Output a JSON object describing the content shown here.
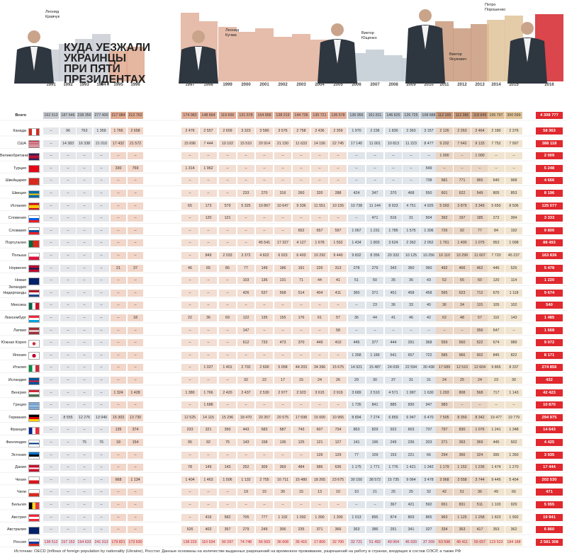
{
  "title": [
    "КУДА УЕЗЖАЛИ",
    "УКРАИНЦЫ",
    "ПРИ ПЯТИ",
    "ПРЕЗИДЕНТАХ"
  ],
  "presidents": [
    "Леонид Кравчук",
    "Леонид Кучма",
    "Виктор Ющенко",
    "Виктор Янукович",
    "Петро Порошенко"
  ],
  "years": [
    "1991",
    "1992",
    "1993",
    "1994",
    "1995",
    "1996",
    "1997",
    "1998",
    "1999",
    "2000",
    "2001",
    "2002",
    "2003",
    "2004",
    "2005",
    "2006",
    "2007",
    "2008",
    "2009",
    "2010",
    "2011",
    "2012",
    "2013",
    "2014",
    "2015",
    "2016"
  ],
  "total": {
    "label": "Всего",
    "cells": [
      "162 513",
      "187 646",
      "238 356",
      "277 400",
      "217 084",
      "212 762",
      "174 083",
      "148 664",
      "119 600",
      "131 578",
      "154 958",
      "138 219",
      "144 736",
      "130 721",
      "136 578",
      "136 956",
      "161 811",
      "146 625",
      "126 725",
      "108 688",
      "112 165",
      "112 386",
      "118 849",
      "195 797",
      "300 599",
      "4 308 777"
    ]
  },
  "rows": [
    {
      "label": "Канада",
      "cells": [
        "–",
        "96",
        "763",
        "1 359",
        "1 766",
        "2 658",
        "2 476",
        "2 557",
        "2 609",
        "3 323",
        "3 580",
        "3 576",
        "2 758",
        "2 436",
        "2 359",
        "1 970",
        "2 236",
        "1 830",
        "2 363",
        "3 157",
        "2 126",
        "2 263",
        "2 464",
        "2 180",
        "2 376",
        "58 363"
      ]
    },
    {
      "label": "США",
      "cells": [
        "–",
        "14 383",
        "16 338",
        "21 010",
        "17 432",
        "21 572",
        "15 696",
        "7 444",
        "10 102",
        "15 510",
        "20 914",
        "21 150",
        "11 633",
        "14 156",
        "22 745",
        "17 140",
        "11 001",
        "10 813",
        "11 223",
        "8 477",
        "9 292",
        "7 642",
        "9 133",
        "7 752",
        "7 997",
        "388 118"
      ]
    },
    {
      "label": "Великобритания",
      "cells": [
        "–",
        "–",
        "–",
        "–",
        "–",
        "–",
        "–",
        "–",
        "–",
        "–",
        "–",
        "–",
        "–",
        "–",
        "–",
        "–",
        "–",
        "–",
        "–",
        "–",
        "1 000",
        "–",
        "1 000",
        "–",
        "–",
        "2 009"
      ]
    },
    {
      "label": "Турция",
      "cells": [
        "–",
        "–",
        "–",
        "–",
        "330",
        "769",
        "1 314",
        "1 962",
        "–",
        "–",
        "–",
        "–",
        "–",
        "–",
        "–",
        "–",
        "–",
        "–",
        "–",
        "549",
        "–",
        "–",
        "–",
        "–",
        "–",
        "5 248"
      ]
    },
    {
      "label": "Швейцария",
      "cells": [
        "–",
        "–",
        "–",
        "–",
        "–",
        "–",
        "–",
        "–",
        "–",
        "–",
        "–",
        "–",
        "–",
        "–",
        "–",
        "–",
        "–",
        "–",
        "–",
        "738",
        "581",
        "771",
        "965",
        "640",
        "968",
        "4 666"
      ]
    },
    {
      "label": "Швеция",
      "cells": [
        "–",
        "–",
        "–",
        "–",
        "–",
        "–",
        "–",
        "–",
        "–",
        "233",
        "270",
        "316",
        "260",
        "320",
        "288",
        "424",
        "347",
        "370",
        "468",
        "550",
        "601",
        "622",
        "549",
        "805",
        "853",
        "8 196"
      ]
    },
    {
      "label": "Испания",
      "cells": [
        "–",
        "–",
        "–",
        "–",
        "–",
        "–",
        "65",
        "173",
        "579",
        "5 325",
        "10 867",
        "10 647",
        "9 336",
        "11 551",
        "10 155",
        "10 738",
        "11 144",
        "8 923",
        "4 751",
        "4 925",
        "5 093",
        "3 879",
        "3 349",
        "5 650",
        "8 506",
        "125 077"
      ]
    },
    {
      "label": "Словения",
      "cells": [
        "–",
        "–",
        "–",
        "–",
        "–",
        "–",
        "–",
        "120",
        "121",
        "–",
        "–",
        "–",
        "–",
        "–",
        "–",
        "–",
        "471",
        "516",
        "31",
        "504",
        "392",
        "197",
        "185",
        "272",
        "394",
        "3 333"
      ]
    },
    {
      "label": "Словакия",
      "cells": [
        "–",
        "–",
        "–",
        "–",
        "–",
        "–",
        "–",
        "–",
        "–",
        "–",
        "–",
        "–",
        "652",
        "657",
        "597",
        "1 067",
        "1 231",
        "1 785",
        "1 575",
        "1 306",
        "726",
        "92",
        "77",
        "84",
        "192",
        "9 800"
      ]
    },
    {
      "label": "Португалия",
      "cells": [
        "–",
        "–",
        "–",
        "–",
        "–",
        "–",
        "–",
        "–",
        "–",
        "–",
        "45 541",
        "17 327",
        "4 127",
        "1 678",
        "1 552",
        "1 434",
        "1 803",
        "3 624",
        "2 362",
        "2 052",
        "1 761",
        "1 400",
        "1 075",
        "953",
        "1 098",
        "88 493"
      ]
    },
    {
      "label": "Польша",
      "cells": [
        "–",
        "–",
        "–",
        "–",
        "–",
        "–",
        "–",
        "849",
        "2 033",
        "3 372",
        "4 822",
        "6 923",
        "6 403",
        "10 292",
        "9 440",
        "9 832",
        "8 356",
        "20 332",
        "10 125",
        "10 256",
        "10 110",
        "10 299",
        "11 607",
        "7 720",
        "45 237",
        "163 836"
      ]
    },
    {
      "label": "Норвегия",
      "cells": [
        "–",
        "–",
        "–",
        "–",
        "21",
        "37",
        "46",
        "65",
        "85",
        "77",
        "149",
        "186",
        "191",
        "226",
        "313",
        "278",
        "279",
        "343",
        "360",
        "360",
        "492",
        "466",
        "462",
        "446",
        "525",
        "5 478"
      ]
    },
    {
      "label": "Новая Зеландия",
      "cells": [
        "–",
        "–",
        "–",
        "–",
        "–",
        "–",
        "–",
        "–",
        "–",
        "103",
        "136",
        "131",
        "71",
        "44",
        "41",
        "51",
        "50",
        "35",
        "36",
        "43",
        "52",
        "65",
        "60",
        "120",
        "114",
        "1 220"
      ]
    },
    {
      "label": "Нидерланды",
      "cells": [
        "–",
        "–",
        "–",
        "–",
        "–",
        "–",
        "–",
        "–",
        "–",
        "426",
        "537",
        "568",
        "514",
        "404",
        "411",
        "360",
        "371",
        "451",
        "458",
        "458",
        "565",
        "623",
        "712",
        "670",
        "1 118",
        "9 674"
      ]
    },
    {
      "label": "Мексика",
      "cells": [
        "–",
        "–",
        "–",
        "–",
        "–",
        "–",
        "–",
        "–",
        "–",
        "–",
        "–",
        "–",
        "–",
        "–",
        "–",
        "–",
        "23",
        "36",
        "33",
        "40",
        "36",
        "34",
        "115",
        "105",
        "102",
        "540"
      ]
    },
    {
      "label": "Люксембург",
      "cells": [
        "–",
        "–",
        "–",
        "–",
        "–",
        "18",
        "22",
        "36",
        "69",
        "122",
        "135",
        "155",
        "176",
        "61",
        "57",
        "36",
        "44",
        "41",
        "46",
        "42",
        "62",
        "48",
        "57",
        "110",
        "143",
        "1 485"
      ]
    },
    {
      "label": "Латвия",
      "cells": [
        "–",
        "–",
        "–",
        "–",
        "–",
        "–",
        "–",
        "–",
        "–",
        "147",
        "–",
        "–",
        "–",
        "–",
        "58",
        "–",
        "–",
        "–",
        "–",
        "–",
        "–",
        "–",
        "356",
        "547",
        "–",
        "1 668"
      ]
    },
    {
      "label": "Южная Корея",
      "cells": [
        "–",
        "–",
        "–",
        "–",
        "–",
        "–",
        "–",
        "–",
        "–",
        "612",
        "733",
        "473",
        "370",
        "449",
        "410",
        "445",
        "377",
        "444",
        "291",
        "368",
        "559",
        "560",
        "522",
        "674",
        "989",
        "9 072"
      ]
    },
    {
      "label": "Япония",
      "cells": [
        "–",
        "–",
        "–",
        "–",
        "–",
        "–",
        "–",
        "–",
        "–",
        "–",
        "–",
        "–",
        "–",
        "–",
        "–",
        "1 358",
        "1 189",
        "641",
        "657",
        "722",
        "585",
        "966",
        "902",
        "845",
        "822",
        "8 171"
      ]
    },
    {
      "label": "Италия",
      "cells": [
        "–",
        "–",
        "–",
        "–",
        "–",
        "–",
        "–",
        "1 027",
        "1 401",
        "2 702",
        "2 600",
        "5 058",
        "44 203",
        "34 396",
        "15 675",
        "14 921",
        "15 487",
        "24 039",
        "22 594",
        "30 438",
        "17 689",
        "12 510",
        "12 604",
        "9 865",
        "8 337",
        "274 856"
      ]
    },
    {
      "label": "Исландия",
      "cells": [
        "–",
        "–",
        "–",
        "–",
        "–",
        "–",
        "–",
        "–",
        "–",
        "32",
        "22",
        "17",
        "15",
        "24",
        "26",
        "29",
        "30",
        "37",
        "31",
        "31",
        "24",
        "25",
        "24",
        "23",
        "30",
        "432"
      ]
    },
    {
      "label": "Венгрия",
      "cells": [
        "–",
        "–",
        "–",
        "–",
        "1 324",
        "1 428",
        "1 380",
        "1 766",
        "2 420",
        "2 437",
        "2 530",
        "2 977",
        "2 923",
        "3 615",
        "2 919",
        "3 689",
        "2 510",
        "4 571",
        "1 987",
        "1 630",
        "1 293",
        "808",
        "568",
        "717",
        "1 143",
        "42 423"
      ]
    },
    {
      "label": "Греция",
      "cells": [
        "–",
        "–",
        "–",
        "–",
        "–",
        "–",
        "–",
        "1 688",
        "–",
        "–",
        "–",
        "–",
        "–",
        "–",
        "–",
        "1 735",
        "841",
        "885",
        "830",
        "947",
        "983",
        "–",
        "–",
        "–",
        "–",
        "10 870"
      ]
    },
    {
      "label": "Германия",
      "cells": [
        "–",
        "8 555",
        "12 276",
        "13 940",
        "15 303",
        "13 730",
        "12 525",
        "14 115",
        "15 296",
        "18 470",
        "20 357",
        "20 575",
        "17 698",
        "15 000",
        "10 965",
        "8 894",
        "7 274",
        "6 859",
        "6 947",
        "6 470",
        "7 505",
        "8 359",
        "8 342",
        "19 477",
        "19 779",
        "294 975"
      ]
    },
    {
      "label": "Франция",
      "cells": [
        "–",
        "–",
        "–",
        "–",
        "135",
        "374",
        "233",
        "321",
        "350",
        "443",
        "583",
        "587",
        "743",
        "607",
        "734",
        "863",
        "829",
        "922",
        "603",
        "737",
        "797",
        "830",
        "1 076",
        "1 241",
        "1 348",
        "14 643"
      ]
    },
    {
      "label": "Финляндия",
      "cells": [
        "–",
        "–",
        "75",
        "76",
        "18",
        "154",
        "95",
        "92",
        "75",
        "143",
        "158",
        "136",
        "125",
        "121",
        "127",
        "141",
        "196",
        "249",
        "236",
        "203",
        "271",
        "393",
        "369",
        "445",
        "502",
        "4 425"
      ]
    },
    {
      "label": "Эстония",
      "cells": [
        "–",
        "–",
        "–",
        "–",
        "–",
        "–",
        "–",
        "–",
        "–",
        "–",
        "–",
        "–",
        "–",
        "126",
        "129",
        "77",
        "109",
        "153",
        "221",
        "66",
        "294",
        "366",
        "324",
        "395",
        "1 350",
        "3 935"
      ]
    },
    {
      "label": "Дания",
      "cells": [
        "–",
        "–",
        "–",
        "–",
        "–",
        "–",
        "78",
        "149",
        "143",
        "252",
        "309",
        "369",
        "484",
        "586",
        "636",
        "1 175",
        "1 771",
        "1 776",
        "1 421",
        "1 342",
        "1 179",
        "1 152",
        "1 236",
        "1 474",
        "1 270",
        "17 444"
      ]
    },
    {
      "label": "Чехия",
      "cells": [
        "–",
        "–",
        "–",
        "–",
        "668",
        "1 134",
        "1 404",
        "1 463",
        "1 506",
        "1 132",
        "2 755",
        "10 711",
        "15 480",
        "18 265",
        "23 675",
        "30 150",
        "38 572",
        "15 735",
        "9 064",
        "3 478",
        "3 968",
        "3 558",
        "3 744",
        "9 445",
        "5 454",
        "202 530"
      ]
    },
    {
      "label": "Чили",
      "cells": [
        "–",
        "–",
        "–",
        "–",
        "–",
        "–",
        "–",
        "–",
        "–",
        "19",
        "15",
        "30",
        "15",
        "13",
        "10",
        "10",
        "21",
        "25",
        "25",
        "32",
        "42",
        "51",
        "36",
        "49",
        "66",
        "471"
      ]
    },
    {
      "label": "Бельгия",
      "cells": [
        "–",
        "–",
        "–",
        "–",
        "–",
        "–",
        "–",
        "–",
        "–",
        "–",
        "–",
        "–",
        "–",
        "–",
        "–",
        "–",
        "–",
        "367",
        "421",
        "592",
        "651",
        "831",
        "511",
        "1 103",
        "929",
        "5 955"
      ]
    },
    {
      "label": "Австрия",
      "cells": [
        "–",
        "–",
        "–",
        "–",
        "–",
        "–",
        "–",
        "416",
        "582",
        "705",
        "777",
        "1 102",
        "1 092",
        "1 300",
        "1 300",
        "1 013",
        "895",
        "874",
        "803",
        "865",
        "963",
        "1 125",
        "1 258",
        "1 823",
        "1 992",
        "19 941"
      ]
    },
    {
      "label": "Австралия",
      "cells": [
        "–",
        "–",
        "–",
        "–",
        "–",
        "–",
        "526",
        "402",
        "357",
        "279",
        "249",
        "306",
        "235",
        "371",
        "366",
        "363",
        "386",
        "291",
        "341",
        "327",
        "334",
        "363",
        "417",
        "353",
        "362",
        "6 860"
      ]
    },
    {
      "label": "Россия",
      "cells": [
        "138 512",
        "157 152",
        "194 633",
        "241 013",
        "179 821",
        "173 630",
        "138 233",
        "110 934",
        "90 297",
        "74 748",
        "56 503",
        "36 608",
        "35 415",
        "17 800",
        "32 700",
        "32 721",
        "51 492",
        "49 064",
        "45 920",
        "37 209",
        "63 598",
        "49 411",
        "55 657",
        "123 523",
        "184 188",
        "2 581 308"
      ]
    }
  ],
  "source": "Источник: OECD (Inflows of foreign population by nationality (Ukraine), Росстат. Данные основаны на количестве выданных разрешений на временное проживание, разрешений на работу в странах, входящих в состав ОЭСР, а также РФ"
}
